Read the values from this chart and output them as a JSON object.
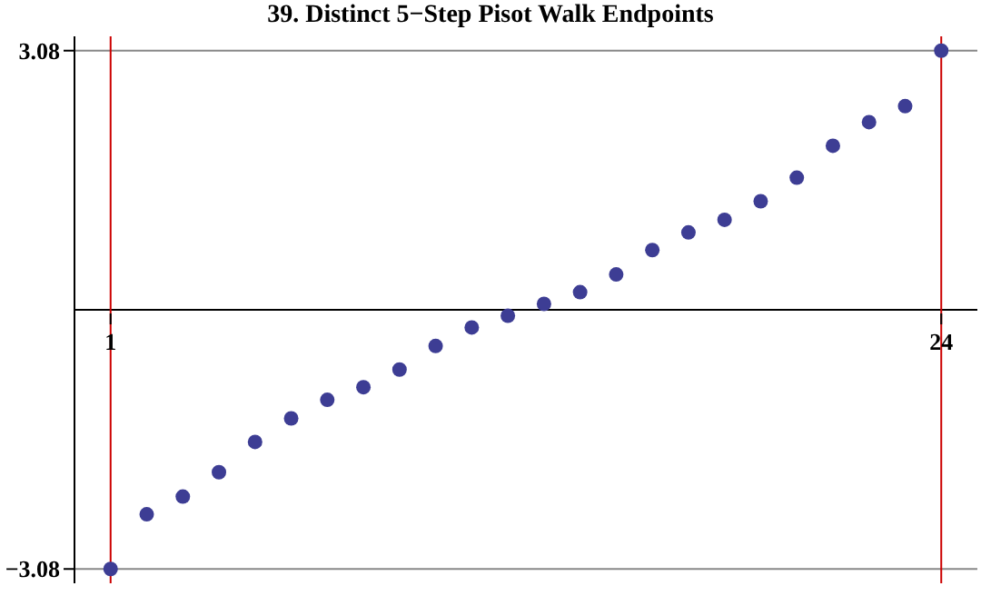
{
  "chart_data": {
    "type": "scatter",
    "title": "39. Distinct 5−Step Pisot Walk Endpoints",
    "x": [
      1,
      2,
      3,
      4,
      5,
      6,
      7,
      8,
      9,
      10,
      11,
      12,
      13,
      14,
      15,
      16,
      17,
      18,
      19,
      20,
      21,
      22,
      23,
      24
    ],
    "series": [
      {
        "color": "#3d3d94",
        "values": [
          -3.08,
          -2.43,
          -2.22,
          -1.93,
          -1.57,
          -1.29,
          -1.07,
          -0.92,
          -0.71,
          -0.43,
          -0.21,
          -0.07,
          0.07,
          0.21,
          0.42,
          0.71,
          0.92,
          1.07,
          1.29,
          1.57,
          1.95,
          2.23,
          2.42,
          3.08
        ]
      }
    ],
    "xlim": [
      0,
      25
    ],
    "xticks": [
      1,
      24
    ],
    "ylim": [
      -3.25,
      3.25
    ],
    "yticks": [
      {
        "value": -3.08,
        "label": "−3.08"
      },
      3.08
    ],
    "grid": "y",
    "marker": "circle",
    "ref_lines": [
      {
        "axis": "x",
        "value": 1,
        "color": "#cc0000"
      },
      {
        "axis": "x",
        "value": 24,
        "color": "#cc0000"
      }
    ]
  }
}
